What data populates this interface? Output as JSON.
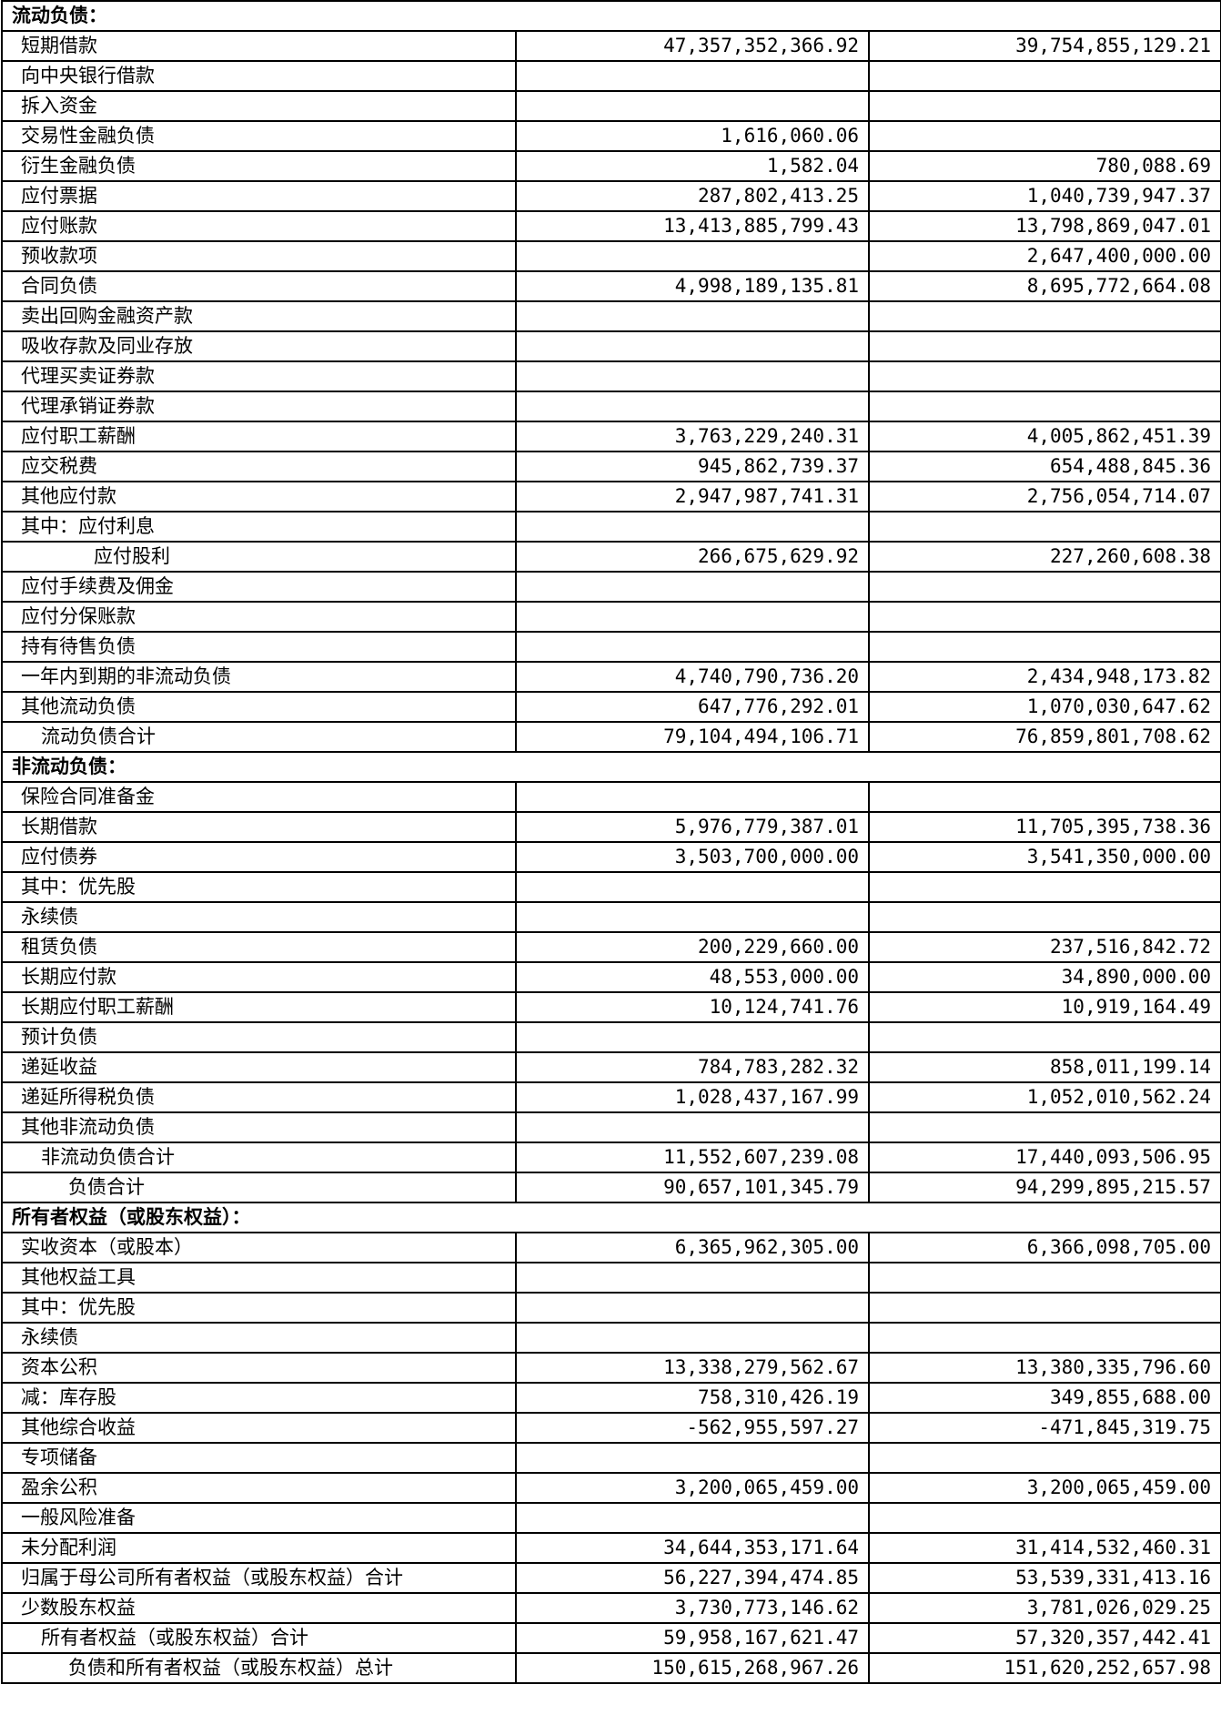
{
  "rows": [
    {
      "type": "section",
      "label": "流动负债："
    },
    {
      "label": "短期借款",
      "v1": "47,357,352,366.92",
      "v2": "39,754,855,129.21"
    },
    {
      "label": "向中央银行借款",
      "v1": "",
      "v2": ""
    },
    {
      "label": "拆入资金",
      "v1": "",
      "v2": ""
    },
    {
      "label": "交易性金融负债",
      "v1": "1,616,060.06",
      "v2": ""
    },
    {
      "label": "衍生金融负债",
      "v1": "1,582.04",
      "v2": "780,088.69"
    },
    {
      "label": "应付票据",
      "v1": "287,802,413.25",
      "v2": "1,040,739,947.37"
    },
    {
      "label": "应付账款",
      "v1": "13,413,885,799.43",
      "v2": "13,798,869,047.01"
    },
    {
      "label": "预收款项",
      "v1": "",
      "v2": "2,647,400,000.00"
    },
    {
      "label": "合同负债",
      "v1": "4,998,189,135.81",
      "v2": "8,695,772,664.08"
    },
    {
      "label": "卖出回购金融资产款",
      "v1": "",
      "v2": ""
    },
    {
      "label": "吸收存款及同业存放",
      "v1": "",
      "v2": ""
    },
    {
      "label": "代理买卖证券款",
      "v1": "",
      "v2": ""
    },
    {
      "label": "代理承销证券款",
      "v1": "",
      "v2": ""
    },
    {
      "label": "应付职工薪酬",
      "v1": "3,763,229,240.31",
      "v2": "4,005,862,451.39"
    },
    {
      "label": "应交税费",
      "v1": "945,862,739.37",
      "v2": "654,488,845.36"
    },
    {
      "label": "其他应付款",
      "v1": "2,947,987,741.31",
      "v2": "2,756,054,714.07"
    },
    {
      "label": "其中：应付利息",
      "v1": "",
      "v2": ""
    },
    {
      "label": "应付股利",
      "indent": 3,
      "v1": "266,675,629.92",
      "v2": "227,260,608.38"
    },
    {
      "label": "应付手续费及佣金",
      "v1": "",
      "v2": ""
    },
    {
      "label": "应付分保账款",
      "v1": "",
      "v2": ""
    },
    {
      "label": "持有待售负债",
      "v1": "",
      "v2": ""
    },
    {
      "label": "一年内到期的非流动负债",
      "v1": "4,740,790,736.20",
      "v2": "2,434,948,173.82"
    },
    {
      "label": "其他流动负债",
      "v1": "647,776,292.01",
      "v2": "1,070,030,647.62"
    },
    {
      "label": "流动负债合计",
      "indent": 1,
      "v1": "79,104,494,106.71",
      "v2": "76,859,801,708.62"
    },
    {
      "type": "section",
      "label": "非流动负债："
    },
    {
      "label": "保险合同准备金",
      "v1": "",
      "v2": ""
    },
    {
      "label": "长期借款",
      "v1": "5,976,779,387.01",
      "v2": "11,705,395,738.36"
    },
    {
      "label": "应付债券",
      "v1": "3,503,700,000.00",
      "v2": "3,541,350,000.00"
    },
    {
      "label": "其中：优先股",
      "v1": "",
      "v2": ""
    },
    {
      "label": "永续债",
      "v1": "",
      "v2": ""
    },
    {
      "label": "租赁负债",
      "v1": "200,229,660.00",
      "v2": "237,516,842.72"
    },
    {
      "label": "长期应付款",
      "v1": "48,553,000.00",
      "v2": "34,890,000.00"
    },
    {
      "label": "长期应付职工薪酬",
      "v1": "10,124,741.76",
      "v2": "10,919,164.49"
    },
    {
      "label": "预计负债",
      "v1": "",
      "v2": ""
    },
    {
      "label": "递延收益",
      "v1": "784,783,282.32",
      "v2": "858,011,199.14"
    },
    {
      "label": "递延所得税负债",
      "v1": "1,028,437,167.99",
      "v2": "1,052,010,562.24"
    },
    {
      "label": "其他非流动负债",
      "v1": "",
      "v2": ""
    },
    {
      "label": "非流动负债合计",
      "indent": 1,
      "v1": "11,552,607,239.08",
      "v2": "17,440,093,506.95"
    },
    {
      "label": "负债合计",
      "indent": 2,
      "v1": "90,657,101,345.79",
      "v2": "94,299,895,215.57"
    },
    {
      "type": "section",
      "label": "所有者权益（或股东权益）："
    },
    {
      "label": "实收资本（或股本）",
      "v1": "6,365,962,305.00",
      "v2": "6,366,098,705.00"
    },
    {
      "label": "其他权益工具",
      "v1": "",
      "v2": ""
    },
    {
      "label": "其中：优先股",
      "v1": "",
      "v2": ""
    },
    {
      "label": "永续债",
      "v1": "",
      "v2": ""
    },
    {
      "label": "资本公积",
      "v1": "13,338,279,562.67",
      "v2": "13,380,335,796.60"
    },
    {
      "label": "减：库存股",
      "v1": "758,310,426.19",
      "v2": "349,855,688.00"
    },
    {
      "label": "其他综合收益",
      "v1": "-562,955,597.27",
      "v2": "-471,845,319.75"
    },
    {
      "label": "专项储备",
      "v1": "",
      "v2": ""
    },
    {
      "label": "盈余公积",
      "v1": "3,200,065,459.00",
      "v2": "3,200,065,459.00"
    },
    {
      "label": "一般风险准备",
      "v1": "",
      "v2": ""
    },
    {
      "label": "未分配利润",
      "v1": "34,644,353,171.64",
      "v2": "31,414,532,460.31"
    },
    {
      "label": "归属于母公司所有者权益（或股东权益）合计",
      "v1": "56,227,394,474.85",
      "v2": "53,539,331,413.16"
    },
    {
      "label": "少数股东权益",
      "v1": "3,730,773,146.62",
      "v2": "3,781,026,029.25"
    },
    {
      "label": "所有者权益（或股东权益）合计",
      "indent": 1,
      "v1": "59,958,167,621.47",
      "v2": "57,320,357,442.41"
    },
    {
      "label": "负债和所有者权益（或股东权益）总计",
      "indent": 2,
      "v1": "150,615,268,967.26",
      "v2": "151,620,252,657.98"
    }
  ]
}
